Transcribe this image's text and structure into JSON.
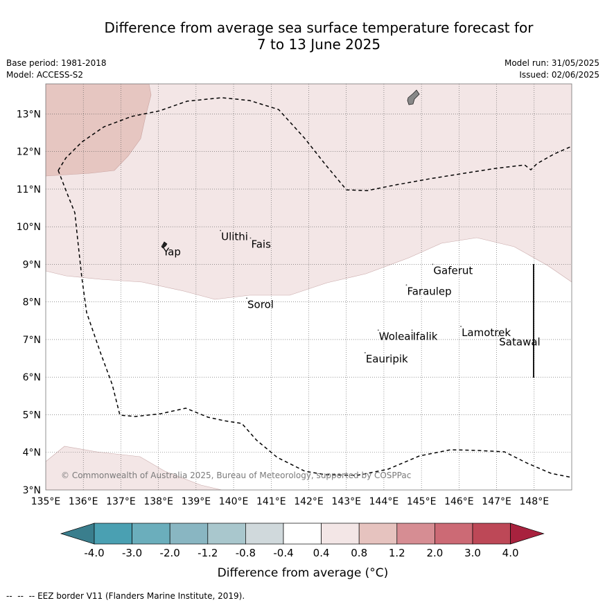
{
  "header": {
    "title_line1": "Difference from average sea surface temperature forecast for",
    "title_line2": "7 to 13 June 2025",
    "base_period": "Base period: 1981-2018",
    "model": "Model: ACCESS-S2",
    "model_run": "Model run: 31/05/2025",
    "issued": "Issued: 02/06/2025"
  },
  "map": {
    "lon_range": [
      135,
      149
    ],
    "lat_range": [
      3,
      13.8
    ],
    "lon_ticks": [
      "135°E",
      "136°E",
      "137°E",
      "138°E",
      "139°E",
      "140°E",
      "141°E",
      "142°E",
      "143°E",
      "144°E",
      "145°E",
      "146°E",
      "147°E",
      "148°E"
    ],
    "lat_ticks": [
      "3°N",
      "4°N",
      "5°N",
      "6°N",
      "7°N",
      "8°N",
      "9°N",
      "10°N",
      "11°N",
      "12°N",
      "13°N"
    ],
    "places": [
      {
        "name": "Yap",
        "lon": 138.1,
        "lat": 9.5
      },
      {
        "name": "Ulithi",
        "lon": 139.65,
        "lat": 9.9
      },
      {
        "name": "Fais",
        "lon": 140.45,
        "lat": 9.7
      },
      {
        "name": "Sorol",
        "lon": 140.35,
        "lat": 8.1
      },
      {
        "name": "Gaferut",
        "lon": 145.3,
        "lat": 9.0
      },
      {
        "name": "Faraulep",
        "lon": 144.6,
        "lat": 8.45
      },
      {
        "name": "Woleai",
        "lon": 143.85,
        "lat": 7.25
      },
      {
        "name": "Ifalik",
        "lon": 144.75,
        "lat": 7.25
      },
      {
        "name": "Eauripik",
        "lon": 143.5,
        "lat": 6.65
      },
      {
        "name": "Lamotrek",
        "lon": 146.05,
        "lat": 7.35
      },
      {
        "name": "Satawal",
        "lon": 147.05,
        "lat": 7.1
      }
    ],
    "copyright": "© Commonwealth of Australia 2025, Bureau of Meteorology, supported by COSPPac"
  },
  "legend": {
    "labels": [
      "-4.0",
      "-3.0",
      "-2.0",
      "-1.2",
      "-0.8",
      "-0.4",
      "0.4",
      "0.8",
      "1.2",
      "2.0",
      "3.0",
      "4.0"
    ],
    "colors": [
      "#3a7e8d",
      "#4aa0b2",
      "#6baebc",
      "#89b6c2",
      "#a9c7cd",
      "#d0d9dc",
      "#ffffff",
      "#f3e6e6",
      "#e6c3bf",
      "#d68d93",
      "#cc6a75",
      "#bd4857",
      "#a8223e"
    ],
    "title": "Difference from average (°C)"
  },
  "footer": {
    "eez_note": "EEZ border V11 (Flanders Marine Institute, 2019)."
  }
}
